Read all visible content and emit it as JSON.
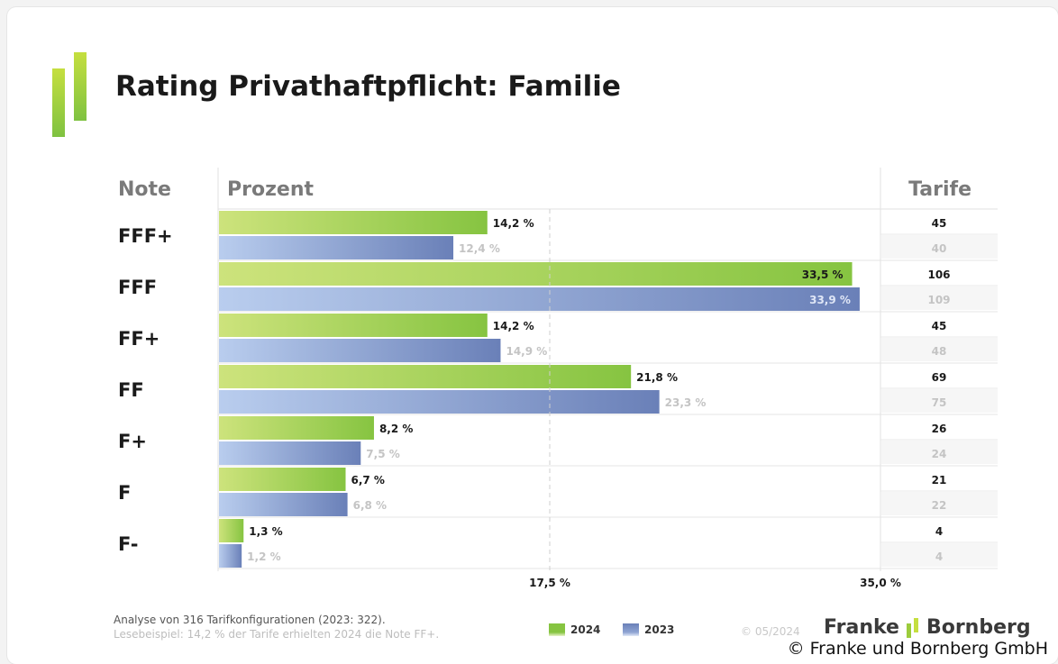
{
  "chart_data": {
    "type": "bar",
    "orientation": "horizontal",
    "title": "Rating Privathaftpflicht: Familie",
    "column_headers": {
      "note": "Note",
      "prozent": "Prozent",
      "tarife": "Tarife"
    },
    "categories": [
      "FFF+",
      "FFF",
      "FF+",
      "FF",
      "F+",
      "F",
      "F-"
    ],
    "series": [
      {
        "name": "2024",
        "color": "#8dc63f",
        "values": [
          14.2,
          33.5,
          14.2,
          21.8,
          8.2,
          6.7,
          1.3
        ],
        "value_labels": [
          "14,2 %",
          "33,5 %",
          "14,2 %",
          "21,8 %",
          "8,2 %",
          "6,7 %",
          "1,3 %"
        ],
        "tarife": [
          "45",
          "106",
          "45",
          "69",
          "26",
          "21",
          "4"
        ]
      },
      {
        "name": "2023",
        "color": "#6f86bd",
        "values": [
          12.4,
          33.9,
          14.9,
          23.3,
          7.5,
          6.8,
          1.2
        ],
        "value_labels": [
          "12,4 %",
          "33,9 %",
          "14,9 %",
          "23,3 %",
          "7,5 %",
          "6,8 %",
          "1,2 %"
        ],
        "tarife": [
          "40",
          "109",
          "48",
          "75",
          "24",
          "22",
          "4"
        ]
      }
    ],
    "xlim": [
      0,
      35.0
    ],
    "ticks": [
      {
        "value": 17.5,
        "label": "17,5 %"
      },
      {
        "value": 35.0,
        "label": "35,0 %"
      }
    ],
    "grid": "dashed line at 17,5 %",
    "legend_position": "bottom"
  },
  "footer": {
    "analysis": "Analyse von 316 Tarifkonfigurationen (2023: 322).",
    "example": "Lesebeispiel: 14,2 % der Tarife erhielten 2024 die Note FF+.",
    "date": "© 05/2024",
    "brand_left": "Franke",
    "brand_right": "Bornberg"
  },
  "copyright": "© Franke und Bornberg GmbH",
  "colors": {
    "green": "#8dc63f",
    "green_light": "#c9e27a",
    "blue": "#6f86bd",
    "blue_light": "#b5c9ec",
    "header_gray": "#7a7a7a"
  }
}
